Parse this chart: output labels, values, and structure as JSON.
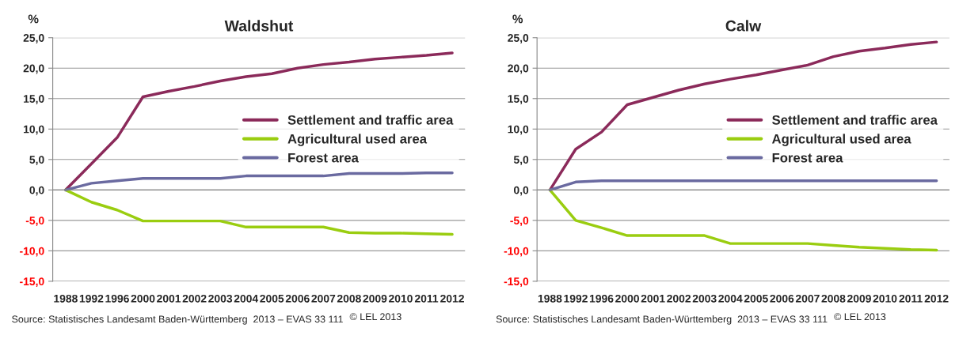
{
  "chart_data": [
    {
      "type": "line",
      "title": "Waldshut",
      "ylabel": "%",
      "categories": [
        "1988",
        "1992",
        "1996",
        "2000",
        "2001",
        "2002",
        "2003",
        "2004",
        "2005",
        "2006",
        "2007",
        "2008",
        "2009",
        "2010",
        "2011",
        "2012"
      ],
      "series": [
        {
          "name": "Settlement and traffic area",
          "color": "#8b2a5a",
          "values": [
            0,
            4.3,
            8.6,
            15.3,
            16.2,
            17.0,
            17.9,
            18.6,
            19.1,
            20.0,
            20.6,
            21.0,
            21.5,
            21.8,
            22.1,
            22.5
          ]
        },
        {
          "name": "Agricultural used area",
          "color": "#9acd10",
          "values": [
            0,
            -2.0,
            -3.3,
            -5.1,
            -5.1,
            -5.1,
            -5.1,
            -6.1,
            -6.1,
            -6.1,
            -6.1,
            -7.0,
            -7.1,
            -7.1,
            -7.2,
            -7.3
          ]
        },
        {
          "name": "Forest area",
          "color": "#6a6aa0",
          "values": [
            0,
            1.1,
            1.5,
            1.9,
            1.9,
            1.9,
            1.9,
            2.3,
            2.3,
            2.3,
            2.3,
            2.7,
            2.7,
            2.7,
            2.8,
            2.8
          ]
        }
      ],
      "ylim": [
        -15,
        25
      ],
      "yticks": [
        {
          "value": -15,
          "label": "-15,0"
        },
        {
          "value": -10,
          "label": "-10,0"
        },
        {
          "value": -5,
          "label": "-5,0"
        },
        {
          "value": 0,
          "label": "0,0"
        },
        {
          "value": 5,
          "label": "5,0"
        },
        {
          "value": 10,
          "label": "10,0"
        },
        {
          "value": 15,
          "label": "15,0"
        },
        {
          "value": 20,
          "label": "20,0"
        },
        {
          "value": 25,
          "label": "25,0"
        }
      ],
      "grid": "y",
      "legend": "right",
      "marker": "none",
      "line_style": "solid",
      "annotations": [
        "Source: Statistisches Landesamt Baden-Württemberg  2013 – EVAS 33 111",
        "© LEL 2013"
      ]
    },
    {
      "type": "line",
      "title": "Calw",
      "ylabel": "%",
      "categories": [
        "1988",
        "1992",
        "1996",
        "2000",
        "2001",
        "2002",
        "2003",
        "2004",
        "2005",
        "2006",
        "2007",
        "2008",
        "2009",
        "2010",
        "2011",
        "2012"
      ],
      "series": [
        {
          "name": "Settlement and traffic area",
          "color": "#8b2a5a",
          "values": [
            0,
            6.7,
            9.5,
            14.0,
            15.2,
            16.4,
            17.4,
            18.2,
            18.9,
            19.7,
            20.5,
            21.9,
            22.8,
            23.3,
            23.9,
            24.3
          ]
        },
        {
          "name": "Agricultural used area",
          "color": "#9acd10",
          "values": [
            0,
            -5.0,
            -6.2,
            -7.5,
            -7.5,
            -7.5,
            -7.5,
            -8.8,
            -8.8,
            -8.8,
            -8.8,
            -9.1,
            -9.4,
            -9.6,
            -9.8,
            -9.9
          ]
        },
        {
          "name": "Forest area",
          "color": "#6a6aa0",
          "values": [
            0,
            1.3,
            1.5,
            1.5,
            1.5,
            1.5,
            1.5,
            1.5,
            1.5,
            1.5,
            1.5,
            1.5,
            1.5,
            1.5,
            1.5,
            1.5
          ]
        }
      ],
      "ylim": [
        -15,
        25
      ],
      "yticks": [
        {
          "value": -15,
          "label": "-15,0"
        },
        {
          "value": -10,
          "label": "-10,0"
        },
        {
          "value": -5,
          "label": "-5,0"
        },
        {
          "value": 0,
          "label": "0,0"
        },
        {
          "value": 5,
          "label": "5,0"
        },
        {
          "value": 10,
          "label": "10,0"
        },
        {
          "value": 15,
          "label": "15,0"
        },
        {
          "value": 20,
          "label": "20,0"
        },
        {
          "value": 25,
          "label": "25,0"
        }
      ],
      "grid": "y",
      "legend": "right",
      "marker": "none",
      "line_style": "solid",
      "annotations": [
        "Source: Statistisches Landesamt Baden-Württemberg  2013 – EVAS 33 111",
        "© LEL 2013"
      ]
    }
  ]
}
